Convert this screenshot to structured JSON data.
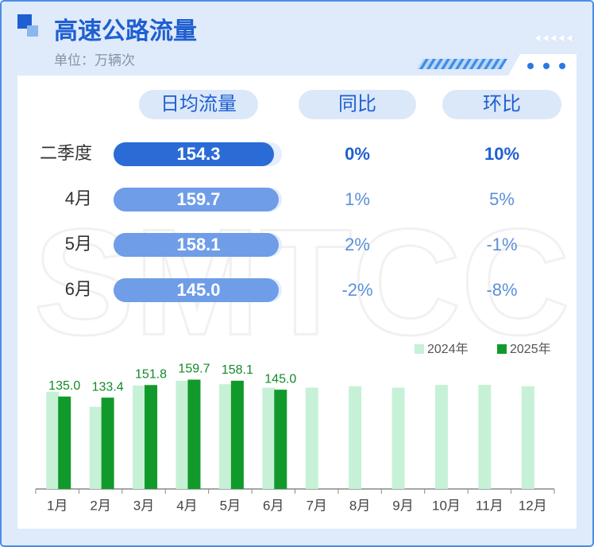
{
  "header": {
    "title": "高速公路流量",
    "subtitle": "单位：万辆次"
  },
  "watermark": "SMTCC",
  "table": {
    "columns": [
      "日均流量",
      "同比",
      "环比"
    ],
    "rows": [
      [
        "二季度",
        "154.3",
        "0%",
        "10%"
      ],
      [
        "4月",
        "159.7",
        "1%",
        "5%"
      ],
      [
        "5月",
        "158.1",
        "2%",
        "-1%"
      ],
      [
        "6月",
        "145.0",
        "-2%",
        "-8%"
      ]
    ]
  },
  "chart_data": {
    "type": "bar",
    "categories": [
      "1月",
      "2月",
      "3月",
      "4月",
      "5月",
      "6月",
      "7月",
      "8月",
      "9月",
      "10月",
      "11月",
      "12月"
    ],
    "series": [
      {
        "name": "2024年",
        "color": "#c6f1d6",
        "values": [
          142,
          120,
          151,
          158,
          153,
          148,
          148,
          150,
          148,
          152,
          152,
          150
        ]
      },
      {
        "name": "2025年",
        "color": "#119a2b",
        "values": [
          135.0,
          133.4,
          151.8,
          159.7,
          158.1,
          145.0,
          null,
          null,
          null,
          null,
          null,
          null
        ],
        "value_labels": [
          "135.0",
          "133.4",
          "151.8",
          "159.7",
          "158.1",
          "145.0",
          null,
          null,
          null,
          null,
          null,
          null
        ]
      }
    ],
    "ylim": [
      0,
      180
    ],
    "legend": "top-right"
  }
}
